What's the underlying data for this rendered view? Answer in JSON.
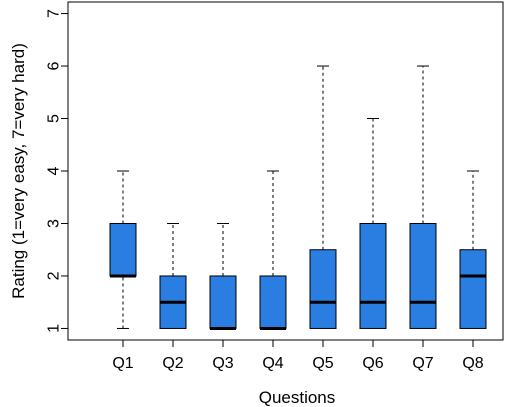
{
  "chart_data": {
    "type": "boxplot",
    "xlabel": "Questions",
    "ylabel": "Rating  (1=very easy, 7=very hard)",
    "ylim": [
      0.78,
      7.22
    ],
    "yticks": [
      1,
      2,
      3,
      4,
      5,
      6,
      7
    ],
    "grid": false,
    "box_color": "#2a7de1",
    "categories": [
      "Q1",
      "Q2",
      "Q3",
      "Q4",
      "Q5",
      "Q6",
      "Q7",
      "Q8"
    ],
    "boxes": [
      {
        "label": "Q1",
        "min": 1,
        "q1": 2,
        "median": 2,
        "q3": 3,
        "max": 4
      },
      {
        "label": "Q2",
        "min": 1,
        "q1": 1,
        "median": 1.5,
        "q3": 2,
        "max": 3
      },
      {
        "label": "Q3",
        "min": 1,
        "q1": 1,
        "median": 1,
        "q3": 2,
        "max": 3
      },
      {
        "label": "Q4",
        "min": 1,
        "q1": 1,
        "median": 1,
        "q3": 2,
        "max": 4
      },
      {
        "label": "Q5",
        "min": 1,
        "q1": 1,
        "median": 1.5,
        "q3": 2.5,
        "max": 6
      },
      {
        "label": "Q6",
        "min": 1,
        "q1": 1,
        "median": 1.5,
        "q3": 3,
        "max": 5
      },
      {
        "label": "Q7",
        "min": 1,
        "q1": 1,
        "median": 1.5,
        "q3": 3,
        "max": 6
      },
      {
        "label": "Q8",
        "min": 1,
        "q1": 1,
        "median": 2,
        "q3": 2.5,
        "max": 4
      }
    ]
  }
}
